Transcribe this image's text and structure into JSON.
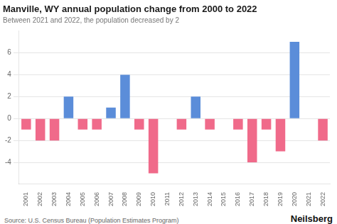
{
  "chart_data": {
    "type": "bar",
    "title": "Manville, WY annual population change from 2000 to 2022",
    "subtitle": "Between 2021 and 2022, the population decreased by 2",
    "annotations": [
      "Source: U.S. Census Bureau (Population Estimates Program)",
      "Neilsberg"
    ],
    "categories": [
      "2001",
      "2002",
      "2003",
      "2004",
      "2005",
      "2006",
      "2007",
      "2008",
      "2009",
      "2010",
      "2011",
      "2012",
      "2013",
      "2014",
      "2015",
      "2016",
      "2017",
      "2018",
      "2019",
      "2020",
      "2021",
      "2022"
    ],
    "values": [
      -1,
      -2,
      -2,
      2,
      -1,
      -1,
      1,
      4,
      -1,
      -5,
      0,
      -1,
      2,
      -1,
      0,
      -1,
      -4,
      -1,
      -3,
      7,
      0,
      -2
    ],
    "colors": [
      "#f06a8a",
      "#f06a8a",
      "#f06a8a",
      "#5b8dd9",
      "#f06a8a",
      "#f06a8a",
      "#5b8dd9",
      "#5b8dd9",
      "#f06a8a",
      "#f06a8a",
      "#5b8dd9",
      "#f06a8a",
      "#5b8dd9",
      "#f06a8a",
      "#5b8dd9",
      "#f06a8a",
      "#f06a8a",
      "#f06a8a",
      "#f06a8a",
      "#5b8dd9",
      "#5b8dd9",
      "#f06a8a"
    ],
    "ylim": [
      -6,
      8
    ],
    "yticks": [
      -4,
      -2,
      0,
      2,
      4,
      6
    ],
    "grid": true
  }
}
